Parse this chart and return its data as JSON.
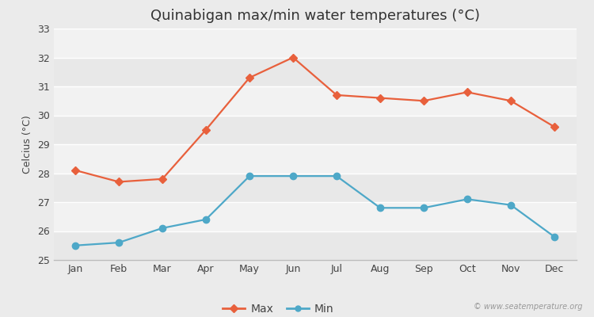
{
  "title": "Quinabigan max/min water temperatures (°C)",
  "ylabel": "Celcius (°C)",
  "months": [
    "Jan",
    "Feb",
    "Mar",
    "Apr",
    "May",
    "Jun",
    "Jul",
    "Aug",
    "Sep",
    "Oct",
    "Nov",
    "Dec"
  ],
  "max_temps": [
    28.1,
    27.7,
    27.8,
    29.5,
    31.3,
    32.0,
    30.7,
    30.6,
    30.5,
    30.8,
    30.5,
    29.6
  ],
  "min_temps": [
    25.5,
    25.6,
    26.1,
    26.4,
    27.9,
    27.9,
    27.9,
    26.8,
    26.8,
    27.1,
    26.9,
    25.8
  ],
  "max_color": "#e8603c",
  "min_color": "#4ea8c8",
  "ylim": [
    25,
    33
  ],
  "yticks": [
    25,
    26,
    27,
    28,
    29,
    30,
    31,
    32,
    33
  ],
  "bg_color": "#ebebeb",
  "band_colors": [
    "#e8e8e8",
    "#f2f2f2"
  ],
  "grid_color": "#ffffff",
  "watermark": "© www.seatemperature.org",
  "title_fontsize": 13,
  "label_fontsize": 9,
  "tick_fontsize": 9,
  "legend_fontsize": 10
}
